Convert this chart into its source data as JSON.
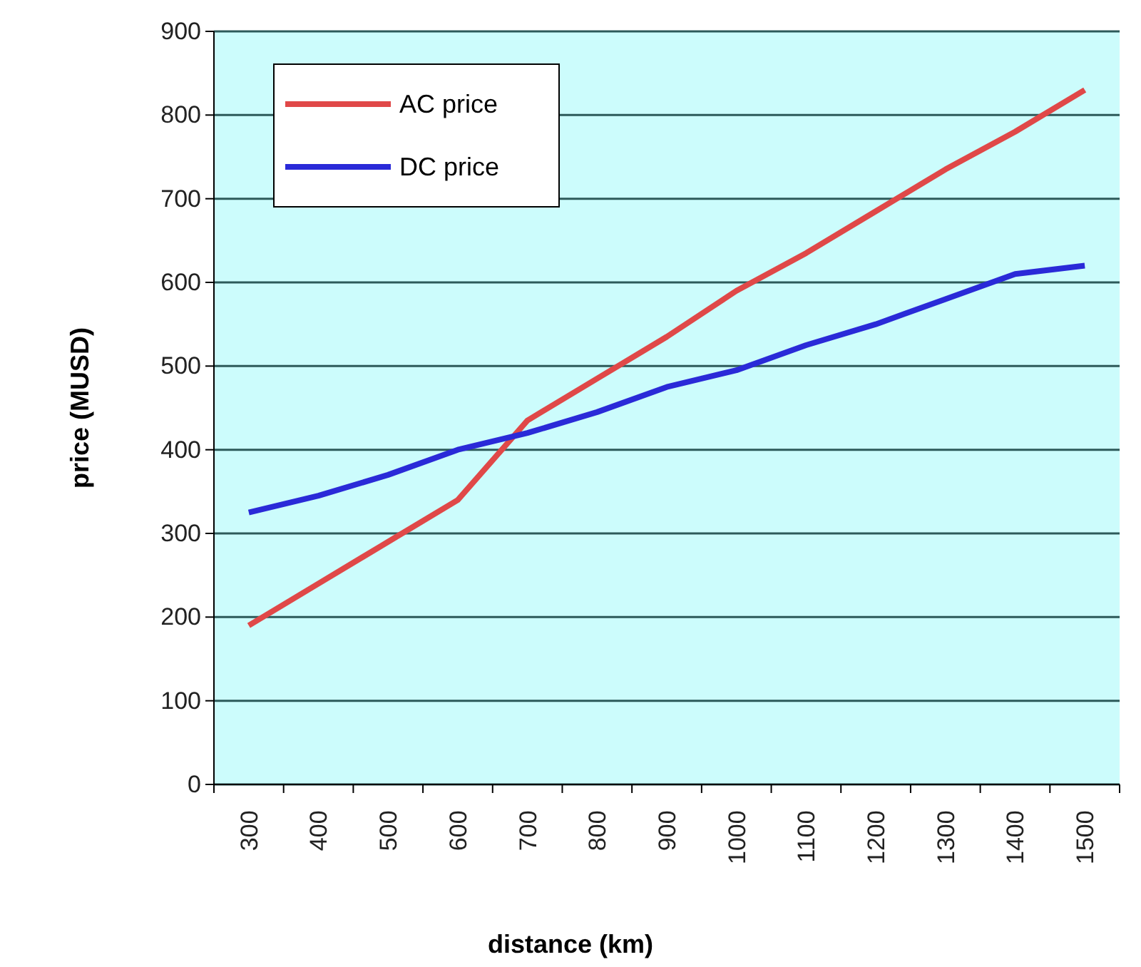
{
  "chart_data": {
    "type": "line",
    "xlabel": "distance (km)",
    "ylabel": "price (MUSD)",
    "categories": [
      "300",
      "400",
      "500",
      "600",
      "700",
      "800",
      "900",
      "1000",
      "1100",
      "1200",
      "1300",
      "1400",
      "1500"
    ],
    "series": [
      {
        "name": "AC price",
        "color": "#e04848",
        "values": [
          190,
          240,
          290,
          340,
          435,
          485,
          535,
          590,
          635,
          685,
          735,
          780,
          830
        ]
      },
      {
        "name": "DC price",
        "color": "#2a2ad8",
        "values": [
          325,
          345,
          370,
          400,
          420,
          445,
          475,
          495,
          525,
          550,
          580,
          610,
          620
        ]
      }
    ],
    "ylim": [
      0,
      900
    ],
    "yticks": [
      0,
      100,
      200,
      300,
      400,
      500,
      600,
      700,
      800,
      900
    ],
    "grid": "y",
    "legend": "top left",
    "marker": "none",
    "line_style": "solid"
  }
}
